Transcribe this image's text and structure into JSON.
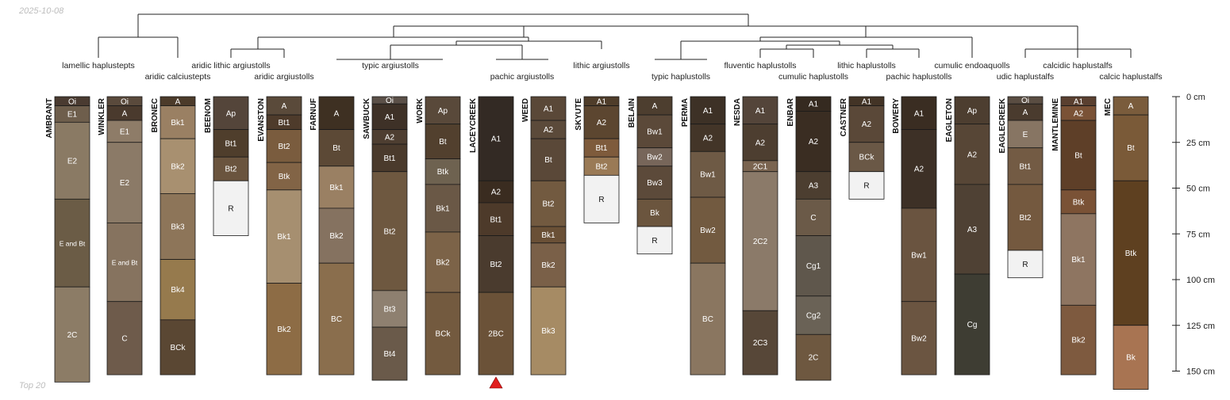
{
  "date": "2025-10-08",
  "footer": "Top 20",
  "colors": {
    "water_table_marker": "#e11d1d",
    "axis": "#222222",
    "dendrogram": "#222222"
  },
  "depth_axis": {
    "unit": "cm",
    "max": 150,
    "ticks": [
      "0 cm",
      "25 cm",
      "50 cm",
      "75 cm",
      "100 cm",
      "125 cm",
      "150 cm"
    ]
  },
  "taxa": [
    "lamellic haplustepts",
    "aridic calciustepts",
    "aridic lithic argiustolls",
    "aridic argiustolls",
    "typic argiustolls",
    "pachic argiustolls",
    "lithic argiustolls",
    "typic haplustolls",
    "fluventic haplustolls",
    "cumulic haplustolls",
    "lithic haplustolls",
    "pachic haplustolls",
    "cumulic endoaquolls",
    "udic haplustalfs",
    "calcidic haplustalfs",
    "calcic haplustalfs"
  ],
  "profiles": [
    {
      "name": "AMBRANT",
      "horizons": [
        {
          "name": "Oi",
          "top": 0,
          "bottom": 5,
          "color": "#4a3b31"
        },
        {
          "name": "E1",
          "top": 5,
          "bottom": 14,
          "color": "#6e5e4c"
        },
        {
          "name": "E2",
          "top": 14,
          "bottom": 56,
          "color": "#8a7a64"
        },
        {
          "name": "E and Bt",
          "top": 56,
          "bottom": 104,
          "color": "#6b5c46"
        },
        {
          "name": "2C",
          "top": 104,
          "bottom": 156,
          "color": "#8c7c66"
        }
      ]
    },
    {
      "name": "WINKLER",
      "horizons": [
        {
          "name": "Oi",
          "top": 0,
          "bottom": 5,
          "color": "#5a4a3c"
        },
        {
          "name": "A",
          "top": 5,
          "bottom": 13,
          "color": "#4a3a2d"
        },
        {
          "name": "E1",
          "top": 13,
          "bottom": 25,
          "color": "#8e7c68"
        },
        {
          "name": "E2",
          "top": 25,
          "bottom": 69,
          "color": "#8b7a67"
        },
        {
          "name": "E and Bt",
          "top": 69,
          "bottom": 112,
          "color": "#86735f"
        },
        {
          "name": "C",
          "top": 112,
          "bottom": 152,
          "color": "#6e5b4b"
        }
      ]
    },
    {
      "name": "BRONEC",
      "horizons": [
        {
          "name": "A",
          "top": 0,
          "bottom": 5,
          "color": "#4c3b2a"
        },
        {
          "name": "Bk1",
          "top": 5,
          "bottom": 23,
          "color": "#9a8063"
        },
        {
          "name": "Bk2",
          "top": 23,
          "bottom": 53,
          "color": "#a89070"
        },
        {
          "name": "Bk3",
          "top": 53,
          "bottom": 89,
          "color": "#8d7559"
        },
        {
          "name": "Bk4",
          "top": 89,
          "bottom": 122,
          "color": "#967a4d"
        },
        {
          "name": "BCk",
          "top": 122,
          "bottom": 152,
          "color": "#5a4733"
        }
      ]
    },
    {
      "name": "BEENOM",
      "horizons": [
        {
          "name": "Ap",
          "top": 0,
          "bottom": 18,
          "color": "#54453a"
        },
        {
          "name": "Bt1",
          "top": 18,
          "bottom": 33,
          "color": "#4f3e2c"
        },
        {
          "name": "Bt2",
          "top": 33,
          "bottom": 46,
          "color": "#6a543e"
        },
        {
          "name": "R",
          "top": 46,
          "bottom": 76,
          "color": "#f2f2f2"
        }
      ]
    },
    {
      "name": "EVANSTON",
      "horizons": [
        {
          "name": "A",
          "top": 0,
          "bottom": 10,
          "color": "#5a4a3a"
        },
        {
          "name": "Bt1",
          "top": 10,
          "bottom": 18,
          "color": "#4e3b2b"
        },
        {
          "name": "Bt2",
          "top": 18,
          "bottom": 36,
          "color": "#7a5c3e"
        },
        {
          "name": "Btk",
          "top": 36,
          "bottom": 51,
          "color": "#826446"
        },
        {
          "name": "Bk1",
          "top": 51,
          "bottom": 102,
          "color": "#a68f70"
        },
        {
          "name": "Bk2",
          "top": 102,
          "bottom": 152,
          "color": "#8d6c45"
        }
      ]
    },
    {
      "name": "FARNUF",
      "horizons": [
        {
          "name": "A",
          "top": 0,
          "bottom": 18,
          "color": "#3e3022"
        },
        {
          "name": "Bt",
          "top": 18,
          "bottom": 38,
          "color": "#5c4936"
        },
        {
          "name": "Bk1",
          "top": 38,
          "bottom": 61,
          "color": "#9a8063"
        },
        {
          "name": "Bk2",
          "top": 61,
          "bottom": 91,
          "color": "#857260"
        },
        {
          "name": "BC",
          "top": 91,
          "bottom": 152,
          "color": "#8a6e4d"
        }
      ]
    },
    {
      "name": "SAWBUCK",
      "horizons": [
        {
          "name": "Oi",
          "top": 0,
          "bottom": 4,
          "color": "#5b5048"
        },
        {
          "name": "A1",
          "top": 4,
          "bottom": 18,
          "color": "#3e3127"
        },
        {
          "name": "A2",
          "top": 18,
          "bottom": 26,
          "color": "#4e3e31"
        },
        {
          "name": "Bt1",
          "top": 26,
          "bottom": 41,
          "color": "#4a3a2c"
        },
        {
          "name": "Bt2",
          "top": 41,
          "bottom": 106,
          "color": "#6e5840"
        },
        {
          "name": "Bt3",
          "top": 106,
          "bottom": 126,
          "color": "#8e8070"
        },
        {
          "name": "Bt4",
          "top": 126,
          "bottom": 155,
          "color": "#6a5a4a"
        }
      ]
    },
    {
      "name": "WORK",
      "horizons": [
        {
          "name": "Ap",
          "top": 0,
          "bottom": 15,
          "color": "#59493a"
        },
        {
          "name": "Bt",
          "top": 15,
          "bottom": 34,
          "color": "#52402e"
        },
        {
          "name": "Btk",
          "top": 34,
          "bottom": 48,
          "color": "#6e6250"
        },
        {
          "name": "Bk1",
          "top": 48,
          "bottom": 74,
          "color": "#6a5846"
        },
        {
          "name": "Bk2",
          "top": 74,
          "bottom": 107,
          "color": "#7c6348"
        },
        {
          "name": "BCk",
          "top": 107,
          "bottom": 152,
          "color": "#735a3f"
        }
      ]
    },
    {
      "name": "LACEYCREEK",
      "horizons": [
        {
          "name": "A1",
          "top": 0,
          "bottom": 46,
          "color": "#332a24"
        },
        {
          "name": "A2",
          "top": 46,
          "bottom": 58,
          "color": "#3a2c20"
        },
        {
          "name": "Bt1",
          "top": 58,
          "bottom": 76,
          "color": "#4d3a2a"
        },
        {
          "name": "Bt2",
          "top": 76,
          "bottom": 107,
          "color": "#4a3b2e"
        },
        {
          "name": "2BC",
          "top": 107,
          "bottom": 152,
          "color": "#6b5238"
        }
      ]
    },
    {
      "name": "WEED",
      "horizons": [
        {
          "name": "A1",
          "top": 0,
          "bottom": 13,
          "color": "#5a4838"
        },
        {
          "name": "A2",
          "top": 13,
          "bottom": 23,
          "color": "#5b4a3a"
        },
        {
          "name": "Bt",
          "top": 23,
          "bottom": 46,
          "color": "#5a4838"
        },
        {
          "name": "Bt2",
          "top": 46,
          "bottom": 71,
          "color": "#725a40"
        },
        {
          "name": "Bk1",
          "top": 71,
          "bottom": 80,
          "color": "#6a5036"
        },
        {
          "name": "Bk2",
          "top": 80,
          "bottom": 104,
          "color": "#7a6048"
        },
        {
          "name": "Bk3",
          "top": 104,
          "bottom": 152,
          "color": "#a68b64"
        }
      ]
    },
    {
      "name": "SKYUTE",
      "horizons": [
        {
          "name": "A1",
          "top": 0,
          "bottom": 5,
          "color": "#4f3d2a"
        },
        {
          "name": "A2",
          "top": 5,
          "bottom": 23,
          "color": "#5c4630"
        },
        {
          "name": "Bt1",
          "top": 23,
          "bottom": 33,
          "color": "#7e5b3c"
        },
        {
          "name": "Bt2",
          "top": 33,
          "bottom": 43,
          "color": "#9a7a56"
        },
        {
          "name": "R",
          "top": 43,
          "bottom": 69,
          "color": "#f2f2f2"
        }
      ]
    },
    {
      "name": "BELAIN",
      "horizons": [
        {
          "name": "A",
          "top": 0,
          "bottom": 10,
          "color": "#4d3e2f"
        },
        {
          "name": "Bw1",
          "top": 10,
          "bottom": 28,
          "color": "#5b4939"
        },
        {
          "name": "Bw2",
          "top": 28,
          "bottom": 38,
          "color": "#77665a"
        },
        {
          "name": "Bw3",
          "top": 38,
          "bottom": 56,
          "color": "#5c4a3a"
        },
        {
          "name": "Bk",
          "top": 56,
          "bottom": 71,
          "color": "#6b553e"
        },
        {
          "name": "R",
          "top": 71,
          "bottom": 86,
          "color": "#f2f2f2"
        }
      ]
    },
    {
      "name": "PERMA",
      "horizons": [
        {
          "name": "A1",
          "top": 0,
          "bottom": 15,
          "color": "#3d3126"
        },
        {
          "name": "A2",
          "top": 15,
          "bottom": 30,
          "color": "#433528"
        },
        {
          "name": "Bw1",
          "top": 30,
          "bottom": 55,
          "color": "#6e5a45"
        },
        {
          "name": "Bw2",
          "top": 55,
          "bottom": 91,
          "color": "#725a40"
        },
        {
          "name": "BC",
          "top": 91,
          "bottom": 152,
          "color": "#8a7660"
        }
      ]
    },
    {
      "name": "NESDA",
      "horizons": [
        {
          "name": "A1",
          "top": 0,
          "bottom": 15,
          "color": "#54453a"
        },
        {
          "name": "A2",
          "top": 15,
          "bottom": 35,
          "color": "#4d3e30"
        },
        {
          "name": "2C1",
          "top": 35,
          "bottom": 41,
          "color": "#7a6450"
        },
        {
          "name": "2C2",
          "top": 41,
          "bottom": 117,
          "color": "#8b7a69"
        },
        {
          "name": "2C3",
          "top": 117,
          "bottom": 152,
          "color": "#574738"
        }
      ]
    },
    {
      "name": "ENBAR",
      "horizons": [
        {
          "name": "A1",
          "top": 0,
          "bottom": 8,
          "color": "#352a20"
        },
        {
          "name": "A2",
          "top": 8,
          "bottom": 41,
          "color": "#3a2d22"
        },
        {
          "name": "A3",
          "top": 41,
          "bottom": 56,
          "color": "#4c3e30"
        },
        {
          "name": "C",
          "top": 56,
          "bottom": 76,
          "color": "#6b5a48"
        },
        {
          "name": "Cg1",
          "top": 76,
          "bottom": 109,
          "color": "#5f574c"
        },
        {
          "name": "Cg2",
          "top": 109,
          "bottom": 130,
          "color": "#6a6256"
        },
        {
          "name": "2C",
          "top": 130,
          "bottom": 155,
          "color": "#6e5840"
        }
      ]
    },
    {
      "name": "CASTNER",
      "horizons": [
        {
          "name": "A1",
          "top": 0,
          "bottom": 5,
          "color": "#433426"
        },
        {
          "name": "A2",
          "top": 5,
          "bottom": 25,
          "color": "#5a4838"
        },
        {
          "name": "BCk",
          "top": 25,
          "bottom": 41,
          "color": "#6a5846"
        },
        {
          "name": "R",
          "top": 41,
          "bottom": 56,
          "color": "#f2f2f2"
        }
      ]
    },
    {
      "name": "BOWERY",
      "horizons": [
        {
          "name": "A1",
          "top": 0,
          "bottom": 18,
          "color": "#3a2d22"
        },
        {
          "name": "A2",
          "top": 18,
          "bottom": 61,
          "color": "#3d3026"
        },
        {
          "name": "Bw1",
          "top": 61,
          "bottom": 112,
          "color": "#6a5440"
        },
        {
          "name": "Bw2",
          "top": 112,
          "bottom": 152,
          "color": "#6b5541"
        }
      ]
    },
    {
      "name": "EAGLETON",
      "horizons": [
        {
          "name": "Ap",
          "top": 0,
          "bottom": 15,
          "color": "#4d3e30"
        },
        {
          "name": "A2",
          "top": 15,
          "bottom": 48,
          "color": "#574636"
        },
        {
          "name": "A3",
          "top": 48,
          "bottom": 97,
          "color": "#4f4134"
        },
        {
          "name": "Cg",
          "top": 97,
          "bottom": 152,
          "color": "#3e3d33"
        }
      ]
    },
    {
      "name": "EAGLECREEK",
      "horizons": [
        {
          "name": "Oi",
          "top": 0,
          "bottom": 4,
          "color": "#5a4d42"
        },
        {
          "name": "A",
          "top": 4,
          "bottom": 13,
          "color": "#4a3b2e"
        },
        {
          "name": "E",
          "top": 13,
          "bottom": 28,
          "color": "#877563"
        },
        {
          "name": "Bt1",
          "top": 28,
          "bottom": 48,
          "color": "#735b44"
        },
        {
          "name": "Bt2",
          "top": 48,
          "bottom": 84,
          "color": "#74593f"
        },
        {
          "name": "R",
          "top": 84,
          "bottom": 99,
          "color": "#f2f2f2"
        }
      ]
    },
    {
      "name": "MANTLEMINE",
      "horizons": [
        {
          "name": "A1",
          "top": 0,
          "bottom": 5,
          "color": "#5a4030"
        },
        {
          "name": "A2",
          "top": 5,
          "bottom": 13,
          "color": "#7a5236"
        },
        {
          "name": "Bt",
          "top": 13,
          "bottom": 51,
          "color": "#5e3f28"
        },
        {
          "name": "Btk",
          "top": 51,
          "bottom": 64,
          "color": "#7a5236"
        },
        {
          "name": "Bk1",
          "top": 64,
          "bottom": 114,
          "color": "#8e7561"
        },
        {
          "name": "Bk2",
          "top": 114,
          "bottom": 152,
          "color": "#7e5a3f"
        }
      ]
    },
    {
      "name": "MEC",
      "horizons": [
        {
          "name": "A",
          "top": 0,
          "bottom": 10,
          "color": "#7a5c3c"
        },
        {
          "name": "Bt",
          "top": 10,
          "bottom": 46,
          "color": "#7a5a38"
        },
        {
          "name": "Btk",
          "top": 46,
          "bottom": 125,
          "color": "#5e4020"
        },
        {
          "name": "Bk",
          "top": 125,
          "bottom": 160,
          "color": "#a87452"
        }
      ]
    }
  ]
}
